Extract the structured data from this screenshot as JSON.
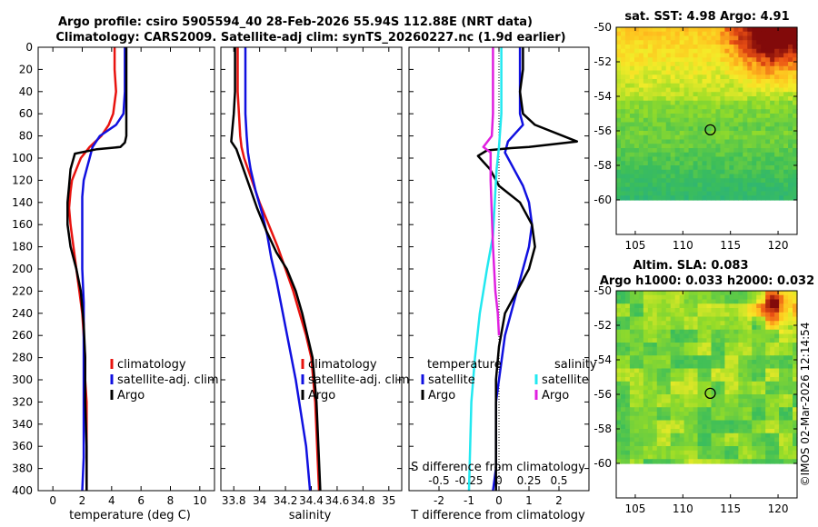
{
  "header": {
    "title_line1": "Argo profile: csiro 5905594_40 28-Feb-2026 55.94S 112.88E (NRT data)",
    "title_line2": "Climatology: CARS2009. Satellite-adj clim: synTS_20260227.nc (1.9d earlier)"
  },
  "credit": "©IMOS 02-Mar-2026 12:14:54",
  "colors": {
    "climatology": "#e8130f",
    "satellite": "#1010e0",
    "argo": "#000000",
    "satellite_s": "#22e8f0",
    "argo_s": "#e020e0"
  },
  "chart_data": [
    {
      "id": "temperature",
      "type": "line",
      "xlabel": "temperature (deg C)",
      "ylabel": "",
      "xlim": [
        -1,
        11
      ],
      "ylim": [
        400,
        0
      ],
      "xticks": [
        "0",
        "2",
        "4",
        "6",
        "8",
        "10"
      ],
      "xtick_values": [
        0,
        2,
        4,
        6,
        8,
        10
      ],
      "yticks": [
        "0",
        "20",
        "40",
        "60",
        "80",
        "100",
        "120",
        "140",
        "160",
        "180",
        "200",
        "220",
        "240",
        "260",
        "280",
        "300",
        "320",
        "340",
        "360",
        "380",
        "400"
      ],
      "ytick_values": [
        0,
        20,
        40,
        60,
        80,
        100,
        120,
        140,
        160,
        180,
        200,
        220,
        240,
        260,
        280,
        300,
        320,
        340,
        360,
        380,
        400
      ],
      "legend": [
        "climatology",
        "satellite-adj. clim",
        "Argo"
      ],
      "series": [
        {
          "name": "climatology",
          "color": "#e8130f",
          "x": [
            4.2,
            4.2,
            4.3,
            4.1,
            3.8,
            3.3,
            2.5,
            1.9,
            1.6,
            1.3,
            1.2,
            1.1,
            1.2,
            1.4,
            1.6,
            1.8,
            2.0,
            2.1,
            2.2,
            2.2,
            2.3,
            2.3,
            2.3
          ],
          "y": [
            0,
            20,
            40,
            60,
            70,
            80,
            90,
            100,
            110,
            120,
            130,
            145,
            160,
            180,
            200,
            220,
            240,
            260,
            280,
            300,
            320,
            360,
            400
          ]
        },
        {
          "name": "satellite-adj. clim",
          "color": "#1010e0",
          "x": [
            4.9,
            4.9,
            4.9,
            4.8,
            4.3,
            3.2,
            2.7,
            2.5,
            2.3,
            2.1,
            2.0,
            2.0,
            2.0,
            2.0,
            2.1,
            2.1,
            2.1,
            2.1,
            2.1,
            2.0
          ],
          "y": [
            0,
            20,
            40,
            60,
            70,
            80,
            90,
            100,
            110,
            120,
            135,
            150,
            170,
            200,
            230,
            260,
            300,
            340,
            370,
            400
          ]
        },
        {
          "name": "Argo",
          "color": "#000000",
          "x": [
            5.0,
            5.0,
            5.0,
            5.0,
            5.0,
            4.9,
            4.6,
            3.0,
            1.5,
            1.2,
            1.1,
            1.0,
            1.0,
            1.2,
            1.6,
            1.9,
            2.1,
            2.2,
            2.2,
            2.3,
            2.3
          ],
          "y": [
            0,
            20,
            40,
            60,
            80,
            86,
            90,
            92,
            96,
            110,
            125,
            140,
            160,
            180,
            200,
            220,
            250,
            280,
            320,
            360,
            400
          ]
        }
      ]
    },
    {
      "id": "salinity",
      "type": "line",
      "xlabel": "salinity",
      "ylabel": "",
      "xlim": [
        33.7,
        35.1
      ],
      "ylim": [
        400,
        0
      ],
      "xticks": [
        "33.8",
        "34",
        "34.2",
        "34.4",
        "34.6",
        "34.8",
        "35"
      ],
      "xtick_values": [
        33.8,
        34.0,
        34.2,
        34.4,
        34.6,
        34.8,
        35.0
      ],
      "legend": [
        "climatology",
        "satellite-adj. clim",
        "Argo"
      ],
      "series": [
        {
          "name": "climatology",
          "color": "#e8130f",
          "x": [
            33.83,
            33.83,
            33.83,
            33.84,
            33.85,
            33.86,
            33.88,
            33.94,
            34.0,
            34.07,
            34.14,
            34.2,
            34.26,
            34.31,
            34.36,
            34.4,
            34.43,
            34.46
          ],
          "y": [
            0,
            20,
            40,
            60,
            80,
            90,
            100,
            120,
            140,
            160,
            180,
            200,
            220,
            240,
            260,
            280,
            320,
            400
          ]
        },
        {
          "name": "satellite-adj. clim",
          "color": "#1010e0",
          "x": [
            33.89,
            33.89,
            33.89,
            33.89,
            33.9,
            33.91,
            33.93,
            33.97,
            34.02,
            34.06,
            34.09,
            34.13,
            34.18,
            34.23,
            34.28,
            34.32,
            34.36,
            34.39
          ],
          "y": [
            0,
            20,
            40,
            60,
            80,
            95,
            110,
            130,
            150,
            170,
            190,
            210,
            240,
            270,
            300,
            330,
            360,
            400
          ]
        },
        {
          "name": "Argo",
          "color": "#000000",
          "x": [
            33.81,
            33.81,
            33.81,
            33.8,
            33.78,
            33.82,
            33.86,
            33.92,
            33.98,
            34.05,
            34.13,
            34.21,
            34.28,
            34.33,
            34.37,
            34.41,
            34.44,
            34.47
          ],
          "y": [
            0,
            20,
            40,
            60,
            85,
            92,
            105,
            125,
            145,
            165,
            185,
            200,
            220,
            240,
            260,
            280,
            320,
            400
          ]
        }
      ]
    },
    {
      "id": "difference",
      "type": "line",
      "xlabel": "T difference from climatology",
      "top_xlabel": "S difference from climatology",
      "xlim": [
        -3,
        3
      ],
      "ylim": [
        400,
        0
      ],
      "xticks": [
        "-2",
        "-1",
        "0",
        "1",
        "2"
      ],
      "xtick_values": [
        -2,
        -1,
        0,
        1,
        2
      ],
      "top_xticks": [
        "-0.5",
        "-0.25",
        "0",
        "0.25",
        "0.5"
      ],
      "top_xtick_values": [
        -0.5,
        -0.25,
        0,
        0.25,
        0.5
      ],
      "legend_temperature": {
        "header": "temperature",
        "items": [
          "satellite",
          "Argo"
        ]
      },
      "legend_salinity": {
        "header": "salinity",
        "items": [
          "satellite",
          "Argo"
        ]
      },
      "series": [
        {
          "name": "temperature satellite",
          "color": "#1010e0",
          "x": [
            0.7,
            0.7,
            0.7,
            0.7,
            0.8,
            0.3,
            0.2,
            0.5,
            0.8,
            1.0,
            1.1,
            1.0,
            0.8,
            0.6,
            0.4,
            0.2,
            0.1,
            0.0,
            -0.1,
            -0.1,
            -0.1,
            -0.2
          ],
          "y": [
            0,
            20,
            40,
            60,
            70,
            85,
            95,
            110,
            125,
            140,
            160,
            180,
            200,
            220,
            240,
            260,
            280,
            300,
            320,
            340,
            380,
            400
          ]
        },
        {
          "name": "temperature Argo",
          "color": "#000000",
          "x": [
            0.8,
            0.8,
            0.7,
            0.8,
            1.2,
            2.6,
            1.0,
            0.4,
            -0.4,
            -0.7,
            -0.3,
            0.0,
            0.7,
            1.1,
            1.2,
            1.0,
            0.6,
            0.2,
            0.0,
            -0.1,
            -0.1,
            -0.1
          ],
          "y": [
            0,
            20,
            40,
            60,
            70,
            85,
            90,
            91,
            93,
            98,
            110,
            125,
            140,
            160,
            180,
            200,
            220,
            240,
            270,
            300,
            350,
            400
          ]
        },
        {
          "name": "salinity satellite",
          "color": "#22e8f0",
          "x": [
            0.02,
            0.02,
            0.02,
            0.02,
            0.0,
            -0.02,
            -0.03,
            -0.04,
            -0.05,
            -0.1,
            -0.16,
            -0.2,
            -0.23,
            -0.24,
            -0.25
          ],
          "y": [
            0,
            20,
            40,
            60,
            90,
            110,
            130,
            150,
            170,
            200,
            240,
            280,
            320,
            360,
            400
          ]
        },
        {
          "name": "salinity Argo",
          "color": "#e020e0",
          "x": [
            -0.05,
            -0.05,
            -0.05,
            -0.05,
            -0.06,
            -0.13,
            -0.07,
            -0.07,
            -0.06,
            -0.05,
            -0.04,
            -0.03,
            -0.01,
            0.0
          ],
          "y": [
            0,
            20,
            40,
            60,
            80,
            90,
            95,
            120,
            150,
            180,
            200,
            220,
            240,
            260
          ]
        }
      ]
    },
    {
      "id": "sst_map",
      "type": "heatmap",
      "title": "sat. SST: 4.98 Argo: 4.91",
      "xlim": [
        103,
        122
      ],
      "ylim": [
        -62,
        -50
      ],
      "data_ylim": [
        -60,
        -50
      ],
      "xticks": [
        "105",
        "110",
        "115",
        "120"
      ],
      "xtick_values": [
        105,
        110,
        115,
        120
      ],
      "yticks": [
        "-50",
        "-52",
        "-54",
        "-56",
        "-58",
        "-60"
      ],
      "ytick_values": [
        -50,
        -52,
        -54,
        -56,
        -58,
        -60
      ],
      "marker": {
        "lon": 112.88,
        "lat": -55.94
      }
    },
    {
      "id": "sla_map",
      "type": "heatmap",
      "title": "Altim. SLA: 0.083",
      "subtitle": "Argo h1000: 0.033 h2000: 0.032",
      "xlim": [
        103,
        122
      ],
      "ylim": [
        -62,
        -50
      ],
      "data_ylim": [
        -60,
        -50
      ],
      "xticks": [
        "105",
        "110",
        "115",
        "120"
      ],
      "xtick_values": [
        105,
        110,
        115,
        120
      ],
      "yticks": [
        "-50",
        "-52",
        "-54",
        "-56",
        "-58",
        "-60"
      ],
      "ytick_values": [
        -50,
        -52,
        -54,
        -56,
        -58,
        -60
      ],
      "marker": {
        "lon": 112.88,
        "lat": -55.94
      }
    }
  ]
}
